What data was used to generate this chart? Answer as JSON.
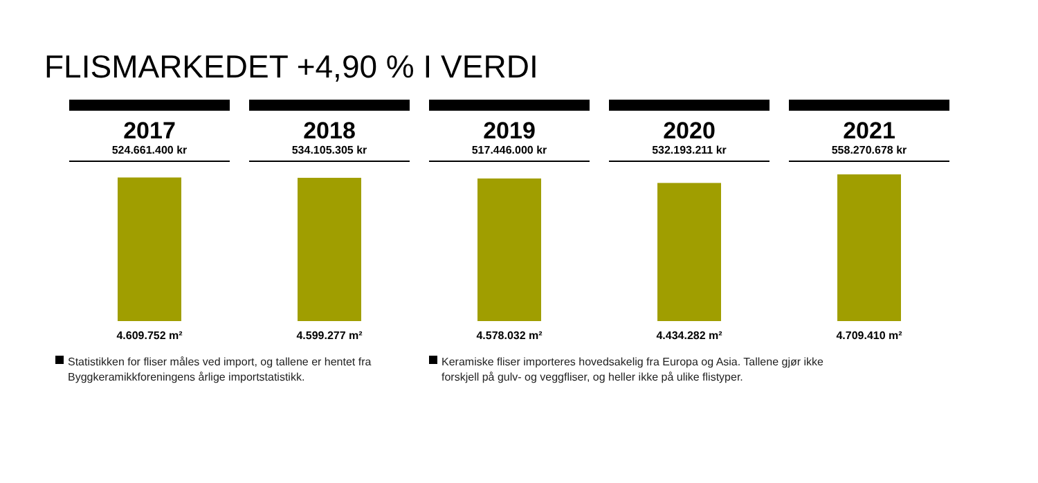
{
  "chart_data": {
    "type": "bar",
    "title": "FLISMARKEDET +4,90 % I VERDI",
    "categories": [
      "2017",
      "2018",
      "2019",
      "2020",
      "2021"
    ],
    "values": [
      4609752,
      4599277,
      4578032,
      4434282,
      4709410
    ],
    "value_labels": [
      "4.609.752 m²",
      "4.599.277 m²",
      "4.578.032 m²",
      "4.434.282 m²",
      "4.709.410 m²"
    ],
    "color": "#a09e00",
    "annotations": [
      "524.661.400 kr",
      "534.105.305 kr",
      "517.446.000 kr",
      "532.193.211 kr",
      "558.270.678 kr",
      "Statistikken for fliser måles ved import, og tallene er hentet fra Byggkeramikkforeningens årlige importstatistikk.",
      "Keramiske fliser importeres hovedsakelig fra Europa og Asia. Tallene gjør ikke forskjell på gulv- og veggfliser, og heller ikke på ulike flistyper."
    ]
  }
}
